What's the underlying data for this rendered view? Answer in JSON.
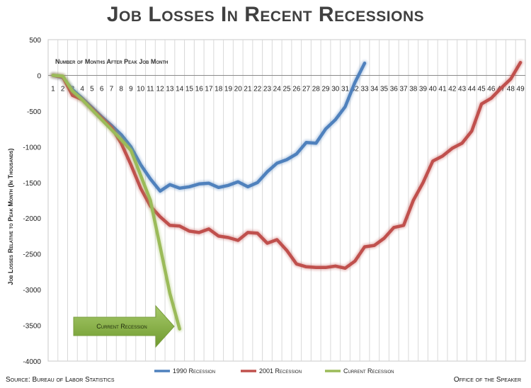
{
  "chart_data": {
    "type": "line",
    "title": "Job Losses In Recent Recessions",
    "xlabel": "Number of Months After Peak Job Month",
    "ylabel": "Job Losses Relative to Peak Month (In Thousands)",
    "x": [
      1,
      2,
      3,
      4,
      5,
      6,
      7,
      8,
      9,
      10,
      11,
      12,
      13,
      14,
      15,
      16,
      17,
      18,
      19,
      20,
      21,
      22,
      23,
      24,
      25,
      26,
      27,
      28,
      29,
      30,
      31,
      32,
      33,
      34,
      35,
      36,
      37,
      38,
      39,
      40,
      41,
      42,
      43,
      44,
      45,
      46,
      47,
      48,
      49
    ],
    "ylim": [
      -4000,
      500
    ],
    "yticks": [
      500,
      0,
      -500,
      -1000,
      -1500,
      -2000,
      -2500,
      -3000,
      -3500,
      -4000
    ],
    "grid": true,
    "legend_position": "bottom",
    "series": [
      {
        "name": "1990 Recession",
        "color": "#4f81bd",
        "points": [
          [
            1,
            0
          ],
          [
            2,
            -30
          ],
          [
            3,
            -200
          ],
          [
            4,
            -320
          ],
          [
            5,
            -450
          ],
          [
            6,
            -580
          ],
          [
            7,
            -700
          ],
          [
            8,
            -830
          ],
          [
            9,
            -1000
          ],
          [
            10,
            -1250
          ],
          [
            11,
            -1450
          ],
          [
            12,
            -1620
          ],
          [
            13,
            -1530
          ],
          [
            14,
            -1580
          ],
          [
            15,
            -1560
          ],
          [
            16,
            -1520
          ],
          [
            17,
            -1510
          ],
          [
            18,
            -1570
          ],
          [
            19,
            -1540
          ],
          [
            20,
            -1490
          ],
          [
            21,
            -1560
          ],
          [
            22,
            -1500
          ],
          [
            23,
            -1350
          ],
          [
            24,
            -1230
          ],
          [
            25,
            -1180
          ],
          [
            26,
            -1100
          ],
          [
            27,
            -940
          ],
          [
            28,
            -950
          ],
          [
            29,
            -750
          ],
          [
            30,
            -620
          ],
          [
            31,
            -440
          ],
          [
            32,
            -100
          ],
          [
            33,
            170
          ]
        ]
      },
      {
        "name": "2001 Recession",
        "color": "#c0504d",
        "points": [
          [
            1,
            0
          ],
          [
            2,
            -20
          ],
          [
            3,
            -280
          ],
          [
            4,
            -340
          ],
          [
            5,
            -470
          ],
          [
            6,
            -600
          ],
          [
            7,
            -730
          ],
          [
            8,
            -950
          ],
          [
            9,
            -1250
          ],
          [
            10,
            -1580
          ],
          [
            11,
            -1830
          ],
          [
            12,
            -1980
          ],
          [
            13,
            -2100
          ],
          [
            14,
            -2110
          ],
          [
            15,
            -2180
          ],
          [
            16,
            -2200
          ],
          [
            17,
            -2150
          ],
          [
            18,
            -2250
          ],
          [
            19,
            -2270
          ],
          [
            20,
            -2310
          ],
          [
            21,
            -2200
          ],
          [
            22,
            -2210
          ],
          [
            23,
            -2350
          ],
          [
            24,
            -2300
          ],
          [
            25,
            -2450
          ],
          [
            26,
            -2640
          ],
          [
            27,
            -2680
          ],
          [
            28,
            -2690
          ],
          [
            29,
            -2690
          ],
          [
            30,
            -2670
          ],
          [
            31,
            -2700
          ],
          [
            32,
            -2600
          ],
          [
            33,
            -2400
          ],
          [
            34,
            -2380
          ],
          [
            35,
            -2280
          ],
          [
            36,
            -2130
          ],
          [
            37,
            -2100
          ],
          [
            38,
            -1750
          ],
          [
            39,
            -1500
          ],
          [
            40,
            -1200
          ],
          [
            41,
            -1130
          ],
          [
            42,
            -1020
          ],
          [
            43,
            -950
          ],
          [
            44,
            -780
          ],
          [
            45,
            -400
          ],
          [
            46,
            -320
          ],
          [
            47,
            -180
          ],
          [
            48,
            -50
          ],
          [
            49,
            180
          ]
        ]
      },
      {
        "name": "Current Recession",
        "color": "#9bbb59",
        "points": [
          [
            1,
            0
          ],
          [
            2,
            -10
          ],
          [
            3,
            -220
          ],
          [
            4,
            -340
          ],
          [
            5,
            -480
          ],
          [
            6,
            -620
          ],
          [
            7,
            -760
          ],
          [
            8,
            -900
          ],
          [
            9,
            -1050
          ],
          [
            10,
            -1400
          ],
          [
            11,
            -1750
          ],
          [
            12,
            -2400
          ],
          [
            13,
            -3050
          ],
          [
            14,
            -3550
          ]
        ]
      }
    ],
    "annotation": "Current Recession"
  },
  "footer": {
    "source": "Source: Bureau of Labor Statistics",
    "office": "Office of the Speaker"
  }
}
